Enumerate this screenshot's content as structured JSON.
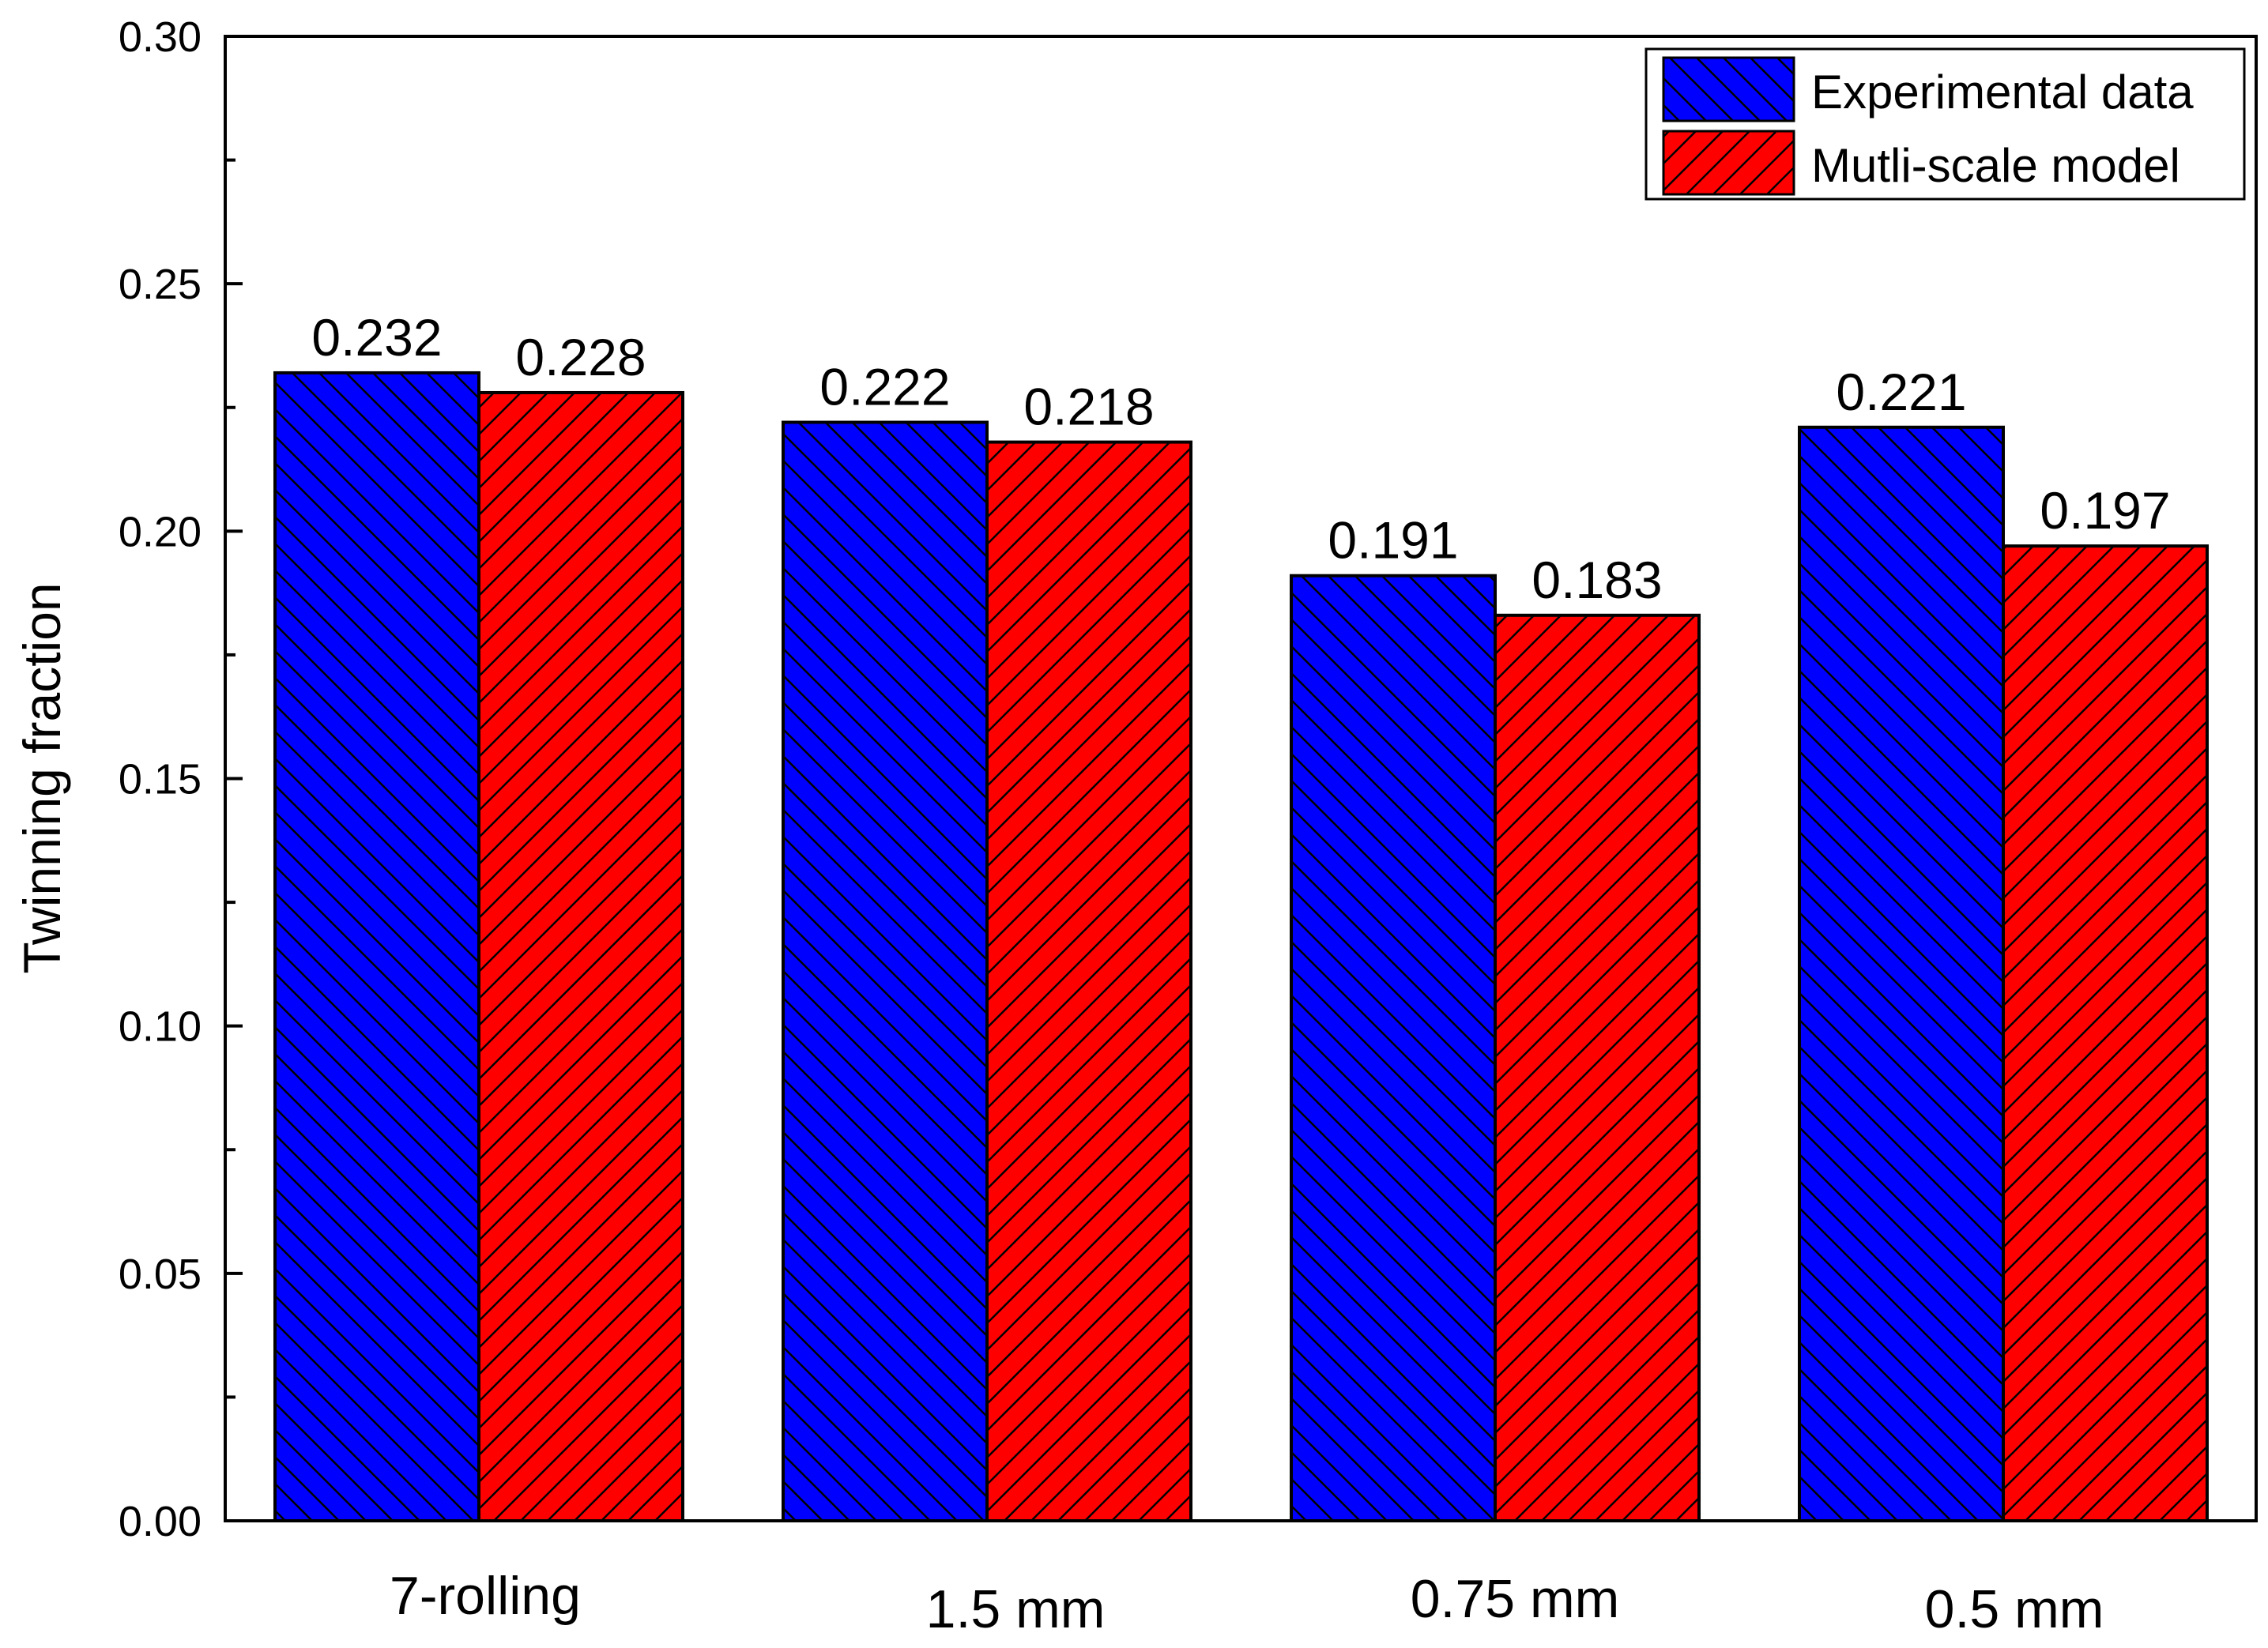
{
  "chart_data": {
    "type": "bar",
    "title": "",
    "xlabel": "",
    "ylabel": "Twinning fraction",
    "ylim": [
      0,
      0.3
    ],
    "yticks": [
      "0.00",
      "0.05",
      "0.10",
      "0.15",
      "0.20",
      "0.25",
      "0.30"
    ],
    "categories": [
      "7-rolling",
      "1.5 mm",
      "0.75 mm",
      "0.5 mm"
    ],
    "series": [
      {
        "name": "Experimental data",
        "color": "#0000ff",
        "hatch": "backslash",
        "values": [
          0.232,
          0.222,
          0.191,
          0.221
        ],
        "labels": [
          "0.232",
          "0.222",
          "0.191",
          "0.221"
        ]
      },
      {
        "name": "Mutli-scale model",
        "color": "#ff0000",
        "hatch": "slash",
        "values": [
          0.228,
          0.218,
          0.183,
          0.197
        ],
        "labels": [
          "0.228",
          "0.218",
          "0.183",
          "0.197"
        ]
      }
    ],
    "legend_position": "top-right",
    "grid": false
  }
}
